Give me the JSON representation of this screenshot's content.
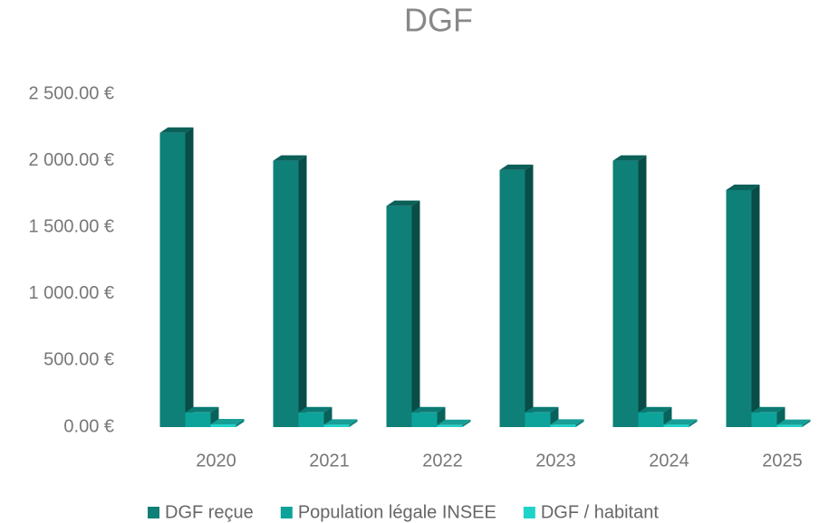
{
  "chart_data": {
    "type": "bar3d",
    "title": "DGF",
    "categories": [
      "2020",
      "2021",
      "2022",
      "2023",
      "2024",
      "2025"
    ],
    "series": [
      {
        "name": "DGF reçue",
        "color": "#0e8077",
        "values": [
          2210,
          2000,
          1660,
          1930,
          2000,
          1780
        ]
      },
      {
        "name": "Population légale INSEE",
        "color": "#0ea39a",
        "values": [
          110,
          110,
          110,
          110,
          110,
          110
        ]
      },
      {
        "name": "DGF / habitant",
        "color": "#1fd3c9",
        "values": [
          20.1,
          18.2,
          15.1,
          17.5,
          18.2,
          16.2
        ]
      }
    ],
    "ylim": [
      0,
      2500
    ],
    "yticks": [
      {
        "value": 0,
        "label": "0.00 €"
      },
      {
        "value": 500,
        "label": "500.00 €"
      },
      {
        "value": 1000,
        "label": "1 000.00 €"
      },
      {
        "value": 1500,
        "label": "1 500.00 €"
      },
      {
        "value": 2000,
        "label": "2 000.00 €"
      },
      {
        "value": 2500,
        "label": "2 500.00 €"
      }
    ],
    "grid": false,
    "legend": "bottom"
  }
}
